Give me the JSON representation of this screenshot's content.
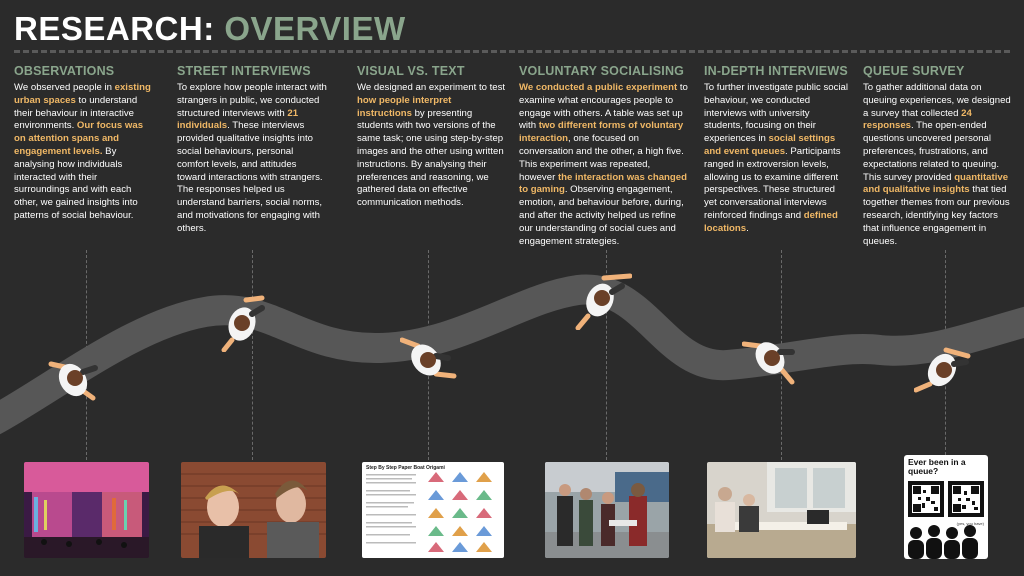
{
  "title": {
    "part1": "RESEARCH:",
    "part2": "OVERVIEW"
  },
  "colors": {
    "accent_green": "#8aa58c",
    "highlight": "#f0b866",
    "background": "#2b2b2b",
    "road": "#565656"
  },
  "columns": [
    {
      "heading": "OBSERVATIONS",
      "segments": [
        {
          "t": "We observed people in ",
          "h": false
        },
        {
          "t": "existing urban spaces",
          "h": true
        },
        {
          "t": " to understand their behaviour in interactive environments. ",
          "h": false
        },
        {
          "t": "Our focus was on attention spans and engagement levels.",
          "h": true
        },
        {
          "t": " By analysing how individuals interacted with their surroundings and with each other, we gained insights into patterns of social behaviour.",
          "h": false
        }
      ]
    },
    {
      "heading": "STREET INTERVIEWS",
      "segments": [
        {
          "t": "To explore how people interact with strangers in public, we conducted structured interviews with ",
          "h": false
        },
        {
          "t": "21 individuals",
          "h": true
        },
        {
          "t": ". These interviews provided qualitative insights into social behaviours, personal comfort levels, and attitudes toward interactions with strangers. The responses helped us understand barriers, social norms, and motivations for engaging with others.",
          "h": false
        }
      ]
    },
    {
      "heading": "VISUAL VS. TEXT",
      "segments": [
        {
          "t": "We designed an experiment to test ",
          "h": false
        },
        {
          "t": "how people interpret instructions",
          "h": true
        },
        {
          "t": " by presenting students with two versions of the same task; one using step-by-step images and the other using written instructions. By analysing their preferences and reasoning, we gathered data on effective communication methods.",
          "h": false
        }
      ]
    },
    {
      "heading": "VOLUNTARY SOCIALISING",
      "segments": [
        {
          "t": "We conducted a public experiment",
          "h": true
        },
        {
          "t": " to examine what encourages people to engage with others. A table was set up with ",
          "h": false
        },
        {
          "t": "two different forms of voluntary interaction",
          "h": true
        },
        {
          "t": ", one focused on conversation and the other, a high five. This experiment was repeated, however ",
          "h": false
        },
        {
          "t": "the interaction was changed to gaming",
          "h": true
        },
        {
          "t": ". Observing engagement, emotion, and behaviour before, during, and after the activity helped us refine our understanding of social cues and engagement strategies.",
          "h": false
        }
      ]
    },
    {
      "heading": "IN-DEPTH INTERVIEWS",
      "segments": [
        {
          "t": "To further investigate public social behaviour, we conducted interviews with university students, focusing on their experiences in ",
          "h": false
        },
        {
          "t": "social settings and event queues",
          "h": true
        },
        {
          "t": ". Participants ranged in extroversion levels, allowing us to examine different perspectives. These structured yet conversational interviews reinforced findings and ",
          "h": false
        },
        {
          "t": "defined locations",
          "h": true
        },
        {
          "t": ".",
          "h": false
        }
      ]
    },
    {
      "heading": "QUEUE SURVEY",
      "segments": [
        {
          "t": "To gather additional data on queuing experiences, we designed a survey that collected ",
          "h": false
        },
        {
          "t": "24 responses",
          "h": true
        },
        {
          "t": ". The open-ended questions uncovered personal preferences, frustrations, and expectations related to queuing. This survey provided ",
          "h": false
        },
        {
          "t": "quantitative and qualitative insights",
          "h": true
        },
        {
          "t": " that tied together themes from our previous research, identifying key factors that influence engagement in queues.",
          "h": false
        }
      ]
    }
  ],
  "photos": [
    {
      "icon": "urban-installation-photo"
    },
    {
      "icon": "two-people-photo"
    },
    {
      "icon": "origami-instructions-photo",
      "doc_title": "Step By Step Paper Boat Origami"
    },
    {
      "icon": "public-experiment-photo"
    },
    {
      "icon": "interview-room-photo"
    },
    {
      "icon": "qr-survey-card",
      "question": "Ever been in a queue?",
      "caption": "(yes, you have)"
    }
  ]
}
